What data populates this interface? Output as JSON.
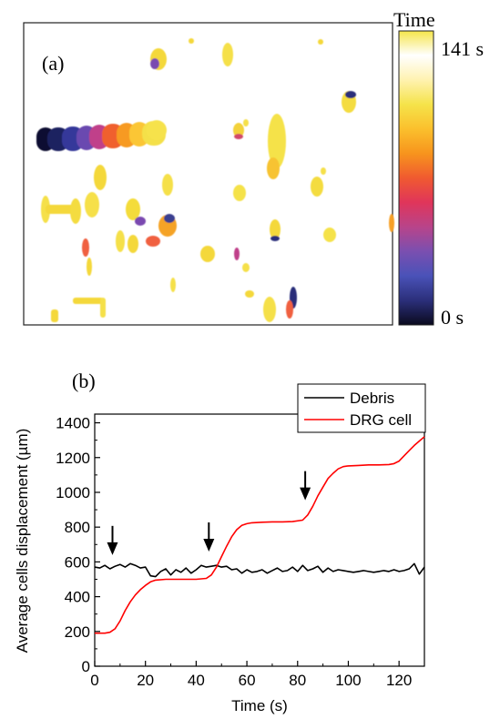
{
  "panel_a": {
    "label": "(a)",
    "colorbar": {
      "title": "Time",
      "max_label": "141 s",
      "min_label": "0 s",
      "min_value": 0,
      "max_value": 141,
      "colors": [
        "#0a0a1e",
        "#2b2f7a",
        "#4a52b8",
        "#7a4fb0",
        "#b8448a",
        "#e0355a",
        "#f05a30",
        "#f7941d",
        "#fbc02d",
        "#f5e34a",
        "#fff2b0",
        "#ffffff",
        "#f5e54a"
      ]
    }
  },
  "panel_b": {
    "label": "(b)"
  },
  "chart_data": {
    "type": "line",
    "title": "",
    "xlabel": "Time (s)",
    "ylabel_prefix": "Average cells displacement (",
    "ylabel_unit": "µm",
    "ylabel_suffix": ")",
    "xlim": [
      0,
      130
    ],
    "ylim": [
      0,
      1450
    ],
    "xticks": [
      0,
      20,
      40,
      60,
      80,
      100,
      120
    ],
    "yticks": [
      0,
      200,
      400,
      600,
      800,
      1000,
      1200,
      1400
    ],
    "legend": {
      "placement": "top-right",
      "entries": [
        "Debris",
        "DRG cell"
      ]
    },
    "series": [
      {
        "name": "Debris",
        "color": "#000000",
        "x": [
          0,
          2,
          4,
          6,
          8,
          10,
          12,
          14,
          16,
          18,
          20,
          22,
          24,
          26,
          28,
          30,
          32,
          34,
          36,
          38,
          40,
          42,
          44,
          46,
          48,
          50,
          52,
          54,
          56,
          58,
          60,
          62,
          64,
          66,
          68,
          70,
          72,
          74,
          76,
          78,
          80,
          82,
          84,
          86,
          88,
          90,
          92,
          94,
          96,
          98,
          100,
          102,
          104,
          106,
          108,
          110,
          112,
          114,
          116,
          118,
          120,
          122,
          124,
          126,
          128,
          130
        ],
        "y": [
          570,
          565,
          580,
          560,
          575,
          585,
          570,
          590,
          580,
          565,
          570,
          520,
          515,
          545,
          560,
          525,
          555,
          540,
          565,
          535,
          555,
          580,
          570,
          575,
          580,
          570,
          575,
          555,
          560,
          535,
          555,
          540,
          545,
          555,
          535,
          550,
          565,
          545,
          550,
          570,
          545,
          580,
          550,
          560,
          575,
          540,
          565,
          545,
          555,
          550,
          545,
          540,
          545,
          550,
          545,
          540,
          545,
          550,
          545,
          555,
          545,
          550,
          560,
          590,
          530,
          570
        ]
      },
      {
        "name": "DRG cell",
        "color": "#ff0000",
        "x": [
          0,
          4,
          6,
          8,
          10,
          12,
          14,
          16,
          18,
          20,
          22,
          24,
          28,
          32,
          36,
          40,
          44,
          46,
          48,
          50,
          52,
          54,
          56,
          58,
          60,
          62,
          66,
          70,
          74,
          78,
          82,
          84,
          86,
          88,
          90,
          92,
          94,
          96,
          98,
          100,
          104,
          108,
          112,
          116,
          118,
          120,
          122,
          124,
          126,
          128,
          130
        ],
        "y": [
          190,
          190,
          195,
          215,
          260,
          320,
          370,
          410,
          440,
          465,
          485,
          495,
          500,
          500,
          500,
          500,
          505,
          525,
          570,
          630,
          690,
          745,
          785,
          810,
          820,
          825,
          828,
          830,
          830,
          832,
          840,
          870,
          920,
          980,
          1030,
          1080,
          1110,
          1135,
          1148,
          1152,
          1155,
          1158,
          1158,
          1160,
          1165,
          1180,
          1210,
          1240,
          1270,
          1295,
          1320
        ]
      }
    ],
    "arrows_at_x": [
      7,
      45,
      83
    ]
  }
}
